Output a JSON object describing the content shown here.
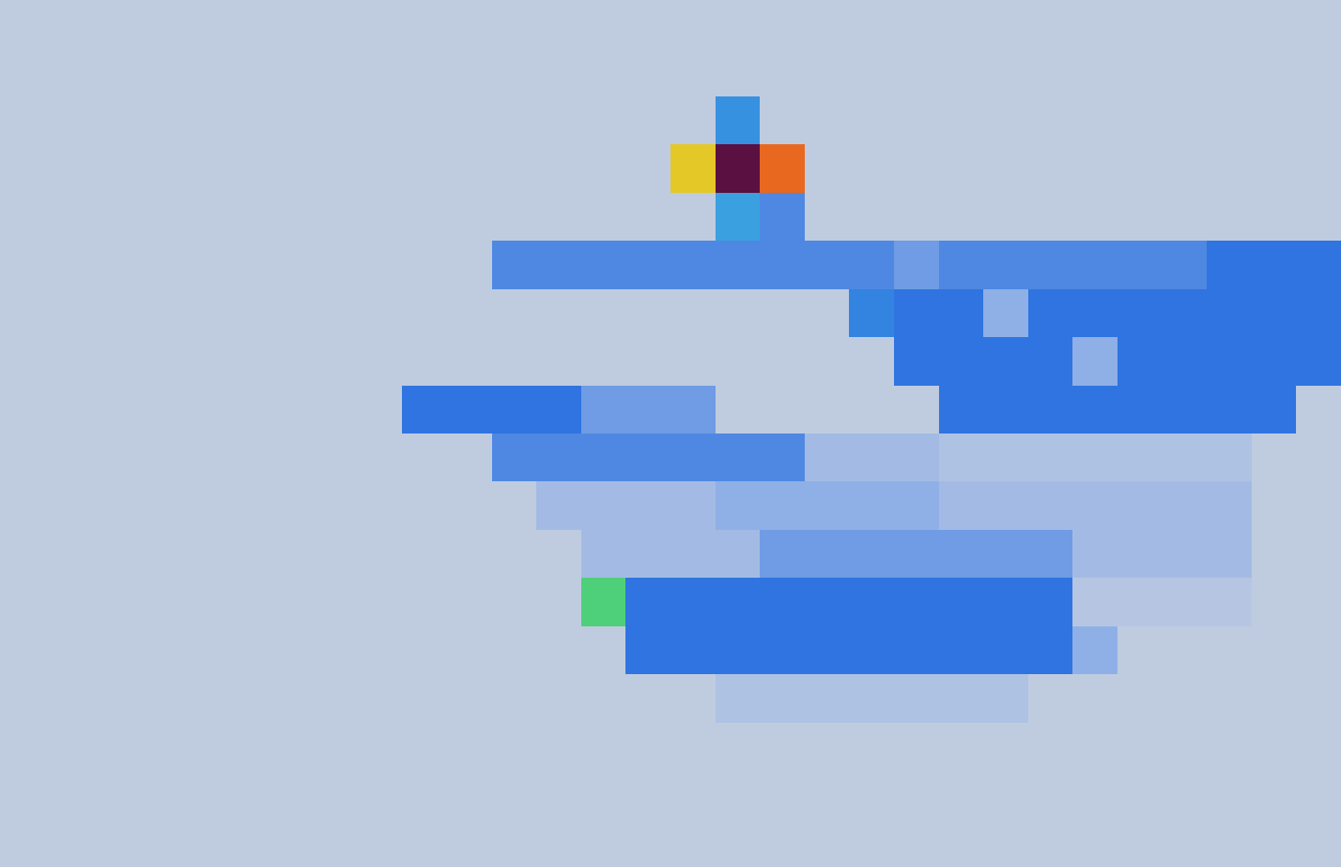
{
  "chart_data": {
    "type": "heatmap",
    "tick_labels": false,
    "zlim": [
      0,
      1
    ],
    "cells": [
      [
        0.05,
        0.05,
        0.05,
        0.05,
        0.05,
        0.05,
        0.05,
        0.05,
        0.05,
        0.05,
        0.05,
        0.05,
        0.05,
        0.05,
        0.05,
        0.05,
        0.05,
        0.05,
        0.05,
        0.05,
        0.05,
        0.05,
        0.05,
        0.05,
        0.05,
        0.05,
        0.05,
        0.05,
        0.05,
        0.05
      ],
      [
        0.05,
        0.05,
        0.05,
        0.05,
        0.05,
        0.05,
        0.05,
        0.05,
        0.05,
        0.05,
        0.05,
        0.05,
        0.05,
        0.05,
        0.05,
        0.05,
        0.05,
        0.05,
        0.05,
        0.05,
        0.05,
        0.05,
        0.05,
        0.05,
        0.05,
        0.05,
        0.05,
        0.05,
        0.05,
        0.05
      ],
      [
        0.05,
        0.05,
        0.05,
        0.05,
        0.05,
        0.05,
        0.05,
        0.05,
        0.05,
        0.05,
        0.05,
        0.05,
        0.05,
        0.05,
        0.05,
        0.05,
        0.45,
        0.05,
        0.05,
        0.05,
        0.05,
        0.05,
        0.05,
        0.05,
        0.05,
        0.05,
        0.05,
        0.05,
        0.05,
        0.05
      ],
      [
        0.05,
        0.05,
        0.05,
        0.05,
        0.05,
        0.05,
        0.05,
        0.05,
        0.05,
        0.05,
        0.05,
        0.05,
        0.05,
        0.05,
        0.05,
        0.7,
        1.0,
        0.8,
        0.05,
        0.05,
        0.05,
        0.05,
        0.05,
        0.05,
        0.05,
        0.05,
        0.05,
        0.05,
        0.05,
        0.05
      ],
      [
        0.05,
        0.05,
        0.05,
        0.05,
        0.05,
        0.05,
        0.05,
        0.05,
        0.05,
        0.05,
        0.05,
        0.05,
        0.05,
        0.05,
        0.05,
        0.05,
        0.5,
        0.3,
        0.05,
        0.05,
        0.05,
        0.05,
        0.05,
        0.05,
        0.05,
        0.05,
        0.05,
        0.05,
        0.05,
        0.05
      ],
      [
        0.05,
        0.05,
        0.05,
        0.05,
        0.05,
        0.05,
        0.05,
        0.05,
        0.05,
        0.05,
        0.05,
        0.3,
        0.3,
        0.3,
        0.3,
        0.3,
        0.3,
        0.3,
        0.3,
        0.3,
        0.25,
        0.3,
        0.3,
        0.3,
        0.3,
        0.3,
        0.3,
        0.35,
        0.35,
        0.35
      ],
      [
        0.05,
        0.05,
        0.05,
        0.05,
        0.05,
        0.05,
        0.05,
        0.05,
        0.05,
        0.05,
        0.05,
        0.05,
        0.05,
        0.05,
        0.05,
        0.05,
        0.05,
        0.05,
        0.05,
        0.4,
        0.35,
        0.35,
        0.2,
        0.35,
        0.35,
        0.35,
        0.35,
        0.35,
        0.35,
        0.35
      ],
      [
        0.05,
        0.05,
        0.05,
        0.05,
        0.05,
        0.05,
        0.05,
        0.05,
        0.05,
        0.05,
        0.05,
        0.05,
        0.05,
        0.05,
        0.05,
        0.05,
        0.05,
        0.05,
        0.05,
        0.05,
        0.35,
        0.35,
        0.35,
        0.35,
        0.2,
        0.35,
        0.35,
        0.35,
        0.35,
        0.35
      ],
      [
        0.05,
        0.05,
        0.05,
        0.05,
        0.05,
        0.05,
        0.05,
        0.05,
        0.05,
        0.35,
        0.35,
        0.35,
        0.35,
        0.25,
        0.25,
        0.25,
        0.05,
        0.05,
        0.05,
        0.05,
        0.05,
        0.35,
        0.35,
        0.35,
        0.35,
        0.35,
        0.35,
        0.35,
        0.35,
        0.05
      ],
      [
        0.05,
        0.05,
        0.05,
        0.05,
        0.05,
        0.05,
        0.05,
        0.05,
        0.05,
        0.05,
        0.05,
        0.3,
        0.3,
        0.3,
        0.3,
        0.3,
        0.3,
        0.3,
        0.15,
        0.15,
        0.15,
        0.12,
        0.12,
        0.12,
        0.12,
        0.12,
        0.12,
        0.12,
        0.05,
        0.05
      ],
      [
        0.05,
        0.05,
        0.05,
        0.05,
        0.05,
        0.05,
        0.05,
        0.05,
        0.05,
        0.05,
        0.05,
        0.05,
        0.15,
        0.15,
        0.15,
        0.15,
        0.2,
        0.2,
        0.2,
        0.2,
        0.2,
        0.15,
        0.15,
        0.15,
        0.15,
        0.15,
        0.15,
        0.15,
        0.05,
        0.05
      ],
      [
        0.05,
        0.05,
        0.05,
        0.05,
        0.05,
        0.05,
        0.05,
        0.05,
        0.05,
        0.05,
        0.05,
        0.05,
        0.05,
        0.15,
        0.15,
        0.15,
        0.15,
        0.25,
        0.25,
        0.25,
        0.25,
        0.25,
        0.25,
        0.25,
        0.15,
        0.15,
        0.15,
        0.15,
        0.05,
        0.05
      ],
      [
        0.05,
        0.05,
        0.05,
        0.05,
        0.05,
        0.05,
        0.05,
        0.05,
        0.05,
        0.05,
        0.05,
        0.05,
        0.05,
        0.55,
        0.35,
        0.35,
        0.35,
        0.35,
        0.35,
        0.35,
        0.35,
        0.35,
        0.35,
        0.35,
        0.1,
        0.1,
        0.1,
        0.1,
        0.05,
        0.05
      ],
      [
        0.05,
        0.05,
        0.05,
        0.05,
        0.05,
        0.05,
        0.05,
        0.05,
        0.05,
        0.05,
        0.05,
        0.05,
        0.05,
        0.05,
        0.35,
        0.35,
        0.35,
        0.35,
        0.35,
        0.35,
        0.35,
        0.35,
        0.35,
        0.35,
        0.2,
        0.05,
        0.05,
        0.05,
        0.05,
        0.05
      ],
      [
        0.05,
        0.05,
        0.05,
        0.05,
        0.05,
        0.05,
        0.05,
        0.05,
        0.05,
        0.05,
        0.05,
        0.05,
        0.05,
        0.05,
        0.05,
        0.05,
        0.12,
        0.12,
        0.12,
        0.12,
        0.12,
        0.12,
        0.12,
        0.05,
        0.05,
        0.05,
        0.05,
        0.05,
        0.05,
        0.05
      ],
      [
        0.05,
        0.05,
        0.05,
        0.05,
        0.05,
        0.05,
        0.05,
        0.05,
        0.05,
        0.05,
        0.05,
        0.05,
        0.05,
        0.05,
        0.05,
        0.05,
        0.05,
        0.05,
        0.05,
        0.05,
        0.05,
        0.05,
        0.05,
        0.05,
        0.05,
        0.05,
        0.05,
        0.05,
        0.05,
        0.05
      ],
      [
        0.05,
        0.05,
        0.05,
        0.05,
        0.05,
        0.05,
        0.05,
        0.05,
        0.05,
        0.05,
        0.05,
        0.05,
        0.05,
        0.05,
        0.05,
        0.05,
        0.05,
        0.05,
        0.05,
        0.05,
        0.05,
        0.05,
        0.05,
        0.05,
        0.05,
        0.05,
        0.05,
        0.05,
        0.05,
        0.05
      ],
      [
        0.05,
        0.05,
        0.05,
        0.05,
        0.05,
        0.05,
        0.05,
        0.05,
        0.05,
        0.05,
        0.05,
        0.05,
        0.05,
        0.05,
        0.05,
        0.05,
        0.05,
        0.05,
        0.05,
        0.05,
        0.05,
        0.05,
        0.05,
        0.05,
        0.05,
        0.05,
        0.05,
        0.05,
        0.05,
        0.05
      ]
    ]
  }
}
